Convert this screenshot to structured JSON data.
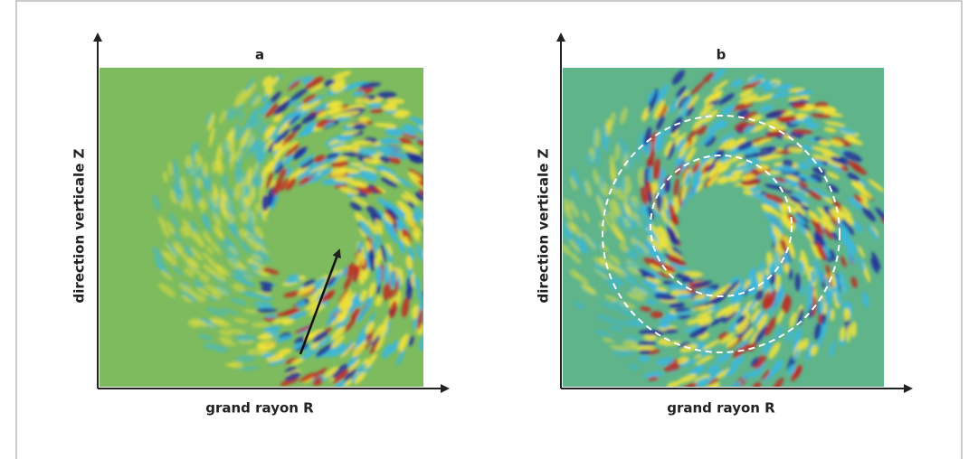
{
  "panels": [
    {
      "label": "a",
      "x_label": "grand rayon R",
      "y_label": "direction verticale Z"
    },
    {
      "label": "b",
      "x_label": "grand rayon R",
      "y_label": "direction verticale Z"
    }
  ]
}
